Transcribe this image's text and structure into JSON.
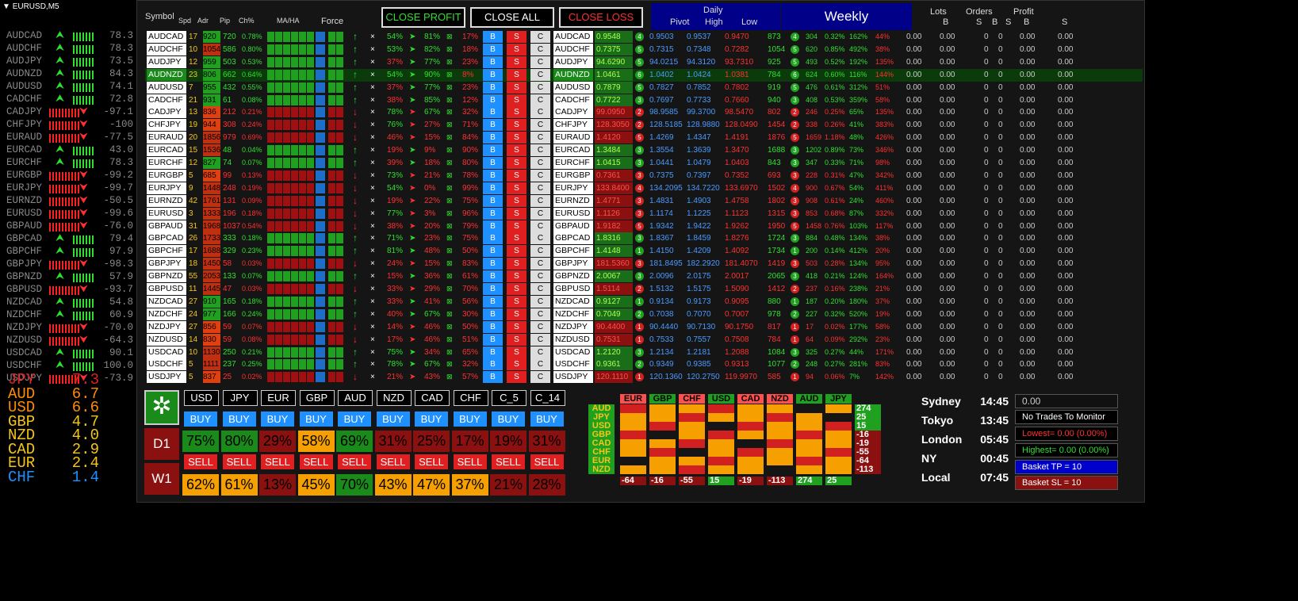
{
  "chart_title": "EURUSD,M5",
  "left_list": [
    {
      "pair": "AUDCAD",
      "dir": "up",
      "value": "78.3"
    },
    {
      "pair": "AUDCHF",
      "dir": "up",
      "value": "78.3"
    },
    {
      "pair": "AUDJPY",
      "dir": "up",
      "value": "73.5"
    },
    {
      "pair": "AUDNZD",
      "dir": "up",
      "value": "84.3"
    },
    {
      "pair": "AUDUSD",
      "dir": "up",
      "value": "74.1"
    },
    {
      "pair": "CADCHF",
      "dir": "up",
      "value": "72.8"
    },
    {
      "pair": "CADJPY",
      "dir": "down",
      "value": "-97.1"
    },
    {
      "pair": "CHFJPY",
      "dir": "down",
      "value": "-100"
    },
    {
      "pair": "EURAUD",
      "dir": "down",
      "value": "-77.5"
    },
    {
      "pair": "EURCAD",
      "dir": "up",
      "value": "43.0"
    },
    {
      "pair": "EURCHF",
      "dir": "up",
      "value": "78.3"
    },
    {
      "pair": "EURGBP",
      "dir": "down",
      "value": "-99.2"
    },
    {
      "pair": "EURJPY",
      "dir": "down",
      "value": "-99.7"
    },
    {
      "pair": "EURNZD",
      "dir": "down",
      "value": "-50.5"
    },
    {
      "pair": "EURUSD",
      "dir": "down",
      "value": "-99.6"
    },
    {
      "pair": "GBPAUD",
      "dir": "down",
      "value": "-76.0"
    },
    {
      "pair": "GBPCAD",
      "dir": "up",
      "value": "79.4"
    },
    {
      "pair": "GBPCHF",
      "dir": "up",
      "value": "97.9"
    },
    {
      "pair": "GBPJPY",
      "dir": "down",
      "value": "-98.3"
    },
    {
      "pair": "GBPNZD",
      "dir": "up",
      "value": "57.9"
    },
    {
      "pair": "GBPUSD",
      "dir": "down",
      "value": "-93.7"
    },
    {
      "pair": "NZDCAD",
      "dir": "up",
      "value": "54.8"
    },
    {
      "pair": "NZDCHF",
      "dir": "up",
      "value": "60.9"
    },
    {
      "pair": "NZDJPY",
      "dir": "down",
      "value": "-70.0"
    },
    {
      "pair": "NZDUSD",
      "dir": "down",
      "value": "-64.3"
    },
    {
      "pair": "USDCAD",
      "dir": "up",
      "value": "90.1"
    },
    {
      "pair": "USDCHF",
      "dir": "up",
      "value": "100.0"
    },
    {
      "pair": "USDJPY",
      "dir": "down",
      "value": "-73.9"
    }
  ],
  "strength": [
    {
      "ccy": "JPY",
      "val": "7.3",
      "color": "#e02020"
    },
    {
      "ccy": "AUD",
      "val": "6.7",
      "color": "#ff8c00"
    },
    {
      "ccy": "USD",
      "val": "6.6",
      "color": "#ff8c00"
    },
    {
      "ccy": "GBP",
      "val": "4.7",
      "color": "#f5c518"
    },
    {
      "ccy": "NZD",
      "val": "4.0",
      "color": "#f5c518"
    },
    {
      "ccy": "CAD",
      "val": "2.9",
      "color": "#f5c518"
    },
    {
      "ccy": "EUR",
      "val": "2.4",
      "color": "#f5c518"
    },
    {
      "ccy": "CHF",
      "val": "1.4",
      "color": "#1e90ff"
    }
  ],
  "headers": {
    "symbol": "Symbol",
    "spd": "Spd",
    "adr": "Adr",
    "pip": "Pip",
    "ch": "Ch%",
    "maha": "MA/HA",
    "force": "Force",
    "daily": "Daily",
    "pivot": "Pivot",
    "high": "High",
    "low": "Low",
    "weekly": "Weekly",
    "lots": "Lots",
    "orders": "Orders",
    "profit": "Profit",
    "b": "B",
    "s": "S"
  },
  "buttons": {
    "close_profit": "CLOSE PROFIT",
    "close_all": "CLOSE ALL",
    "close_loss": "CLOSE LOSS",
    "b": "B",
    "s": "S",
    "c": "C"
  },
  "rows": [
    {
      "sym": "AUDCAD",
      "spd": "17",
      "adr": "920",
      "pip": "720",
      "ch": "0.78%",
      "p1": "54%",
      "p2": "81%",
      "p3": "17%",
      "price": "0.9548",
      "rank": "4",
      "pivot": "0.9503",
      "high": "0.9537",
      "low": "0.9470",
      "w1": "873",
      "w2": "304",
      "w3": "0.32%",
      "w4": "162%",
      "w5": "44%"
    },
    {
      "sym": "AUDCHF",
      "spd": "10",
      "adr": "1054",
      "pip": "586",
      "ch": "0.80%",
      "p1": "53%",
      "p2": "82%",
      "p3": "18%",
      "price": "0.7375",
      "rank": "5",
      "pivot": "0.7315",
      "high": "0.7348",
      "low": "0.7282",
      "w1": "1054",
      "w2": "620",
      "w3": "0.85%",
      "w4": "492%",
      "w5": "38%"
    },
    {
      "sym": "AUDJPY",
      "spd": "12",
      "adr": "959",
      "pip": "503",
      "ch": "0.53%",
      "p1": "37%",
      "p2": "77%",
      "p3": "23%",
      "price": "94.6290",
      "rank": "5",
      "pivot": "94.0215",
      "high": "94.3120",
      "low": "93.7310",
      "w1": "925",
      "w2": "493",
      "w3": "0.52%",
      "w4": "192%",
      "w5": "135%"
    },
    {
      "sym": "AUDNZD",
      "spd": "23",
      "adr": "806",
      "pip": "662",
      "ch": "0.64%",
      "p1": "54%",
      "p2": "90%",
      "p3": "8%",
      "price": "1.0461",
      "rank": "6",
      "pivot": "1.0402",
      "high": "1.0424",
      "low": "1.0381",
      "w1": "784",
      "w2": "624",
      "w3": "0.60%",
      "w4": "116%",
      "w5": "144%"
    },
    {
      "sym": "AUDUSD",
      "spd": "7",
      "adr": "955",
      "pip": "432",
      "ch": "0.55%",
      "p1": "37%",
      "p2": "77%",
      "p3": "23%",
      "price": "0.7879",
      "rank": "5",
      "pivot": "0.7827",
      "high": "0.7852",
      "low": "0.7802",
      "w1": "919",
      "w2": "476",
      "w3": "0.61%",
      "w4": "312%",
      "w5": "51%"
    },
    {
      "sym": "CADCHF",
      "spd": "21",
      "adr": "931",
      "pip": "61",
      "ch": "0.08%",
      "p1": "38%",
      "p2": "85%",
      "p3": "12%",
      "price": "0.7722",
      "rank": "3",
      "pivot": "0.7697",
      "high": "0.7733",
      "low": "0.7660",
      "w1": "940",
      "w2": "408",
      "w3": "0.53%",
      "w4": "359%",
      "w5": "58%"
    },
    {
      "sym": "CADJPY",
      "spd": "13",
      "adr": "836",
      "pip": "212",
      "ch": "0.21%",
      "p1": "78%",
      "p2": "67%",
      "p3": "32%",
      "price": "99.0950",
      "rank": "2",
      "pivot": "98.9585",
      "high": "99.3700",
      "low": "98.5470",
      "w1": "802",
      "w2": "246",
      "w3": "0.25%",
      "w4": "65%",
      "w5": "135%"
    },
    {
      "sym": "CHFJPY",
      "spd": "19",
      "adr": "944",
      "pip": "308",
      "ch": "0.24%",
      "p1": "76%",
      "p2": "27%",
      "p3": "71%",
      "price": "128.3050",
      "rank": "2",
      "pivot": "128.5185",
      "high": "128.9880",
      "low": "128.0490",
      "w1": "1454",
      "w2": "338",
      "w3": "0.26%",
      "w4": "41%",
      "w5": "383%"
    },
    {
      "sym": "EURAUD",
      "spd": "20",
      "adr": "1856",
      "pip": "979",
      "ch": "0.69%",
      "p1": "46%",
      "p2": "15%",
      "p3": "84%",
      "price": "1.4120",
      "rank": "5",
      "pivot": "1.4269",
      "high": "1.4347",
      "low": "1.4191",
      "w1": "1876",
      "w2": "1659",
      "w3": "1.18%",
      "w4": "48%",
      "w5": "426%"
    },
    {
      "sym": "EURCAD",
      "spd": "15",
      "adr": "1536",
      "pip": "48",
      "ch": "0.04%",
      "p1": "19%",
      "p2": "9%",
      "p3": "90%",
      "price": "1.3484",
      "rank": "3",
      "pivot": "1.3554",
      "high": "1.3639",
      "low": "1.3470",
      "w1": "1688",
      "w2": "1202",
      "w3": "0.89%",
      "w4": "73%",
      "w5": "346%"
    },
    {
      "sym": "EURCHF",
      "spd": "12",
      "adr": "827",
      "pip": "74",
      "ch": "0.07%",
      "p1": "39%",
      "p2": "18%",
      "p3": "80%",
      "price": "1.0415",
      "rank": "3",
      "pivot": "1.0441",
      "high": "1.0479",
      "low": "1.0403",
      "w1": "843",
      "w2": "347",
      "w3": "0.33%",
      "w4": "71%",
      "w5": "98%"
    },
    {
      "sym": "EURGBP",
      "spd": "5",
      "adr": "685",
      "pip": "99",
      "ch": "0.13%",
      "p1": "73%",
      "p2": "21%",
      "p3": "78%",
      "price": "0.7361",
      "rank": "3",
      "pivot": "0.7375",
      "high": "0.7397",
      "low": "0.7352",
      "w1": "693",
      "w2": "228",
      "w3": "0.31%",
      "w4": "47%",
      "w5": "342%"
    },
    {
      "sym": "EURJPY",
      "spd": "9",
      "adr": "1448",
      "pip": "248",
      "ch": "0.19%",
      "p1": "54%",
      "p2": "0%",
      "p3": "99%",
      "price": "133.8400",
      "rank": "4",
      "pivot": "134.2095",
      "high": "134.7220",
      "low": "133.6970",
      "w1": "1502",
      "w2": "900",
      "w3": "0.67%",
      "w4": "54%",
      "w5": "411%"
    },
    {
      "sym": "EURNZD",
      "spd": "42",
      "adr": "1761",
      "pip": "131",
      "ch": "0.09%",
      "p1": "19%",
      "p2": "22%",
      "p3": "75%",
      "price": "1.4771",
      "rank": "3",
      "pivot": "1.4831",
      "high": "1.4903",
      "low": "1.4758",
      "w1": "1802",
      "w2": "908",
      "w3": "0.61%",
      "w4": "24%",
      "w5": "460%"
    },
    {
      "sym": "EURUSD",
      "spd": "3",
      "adr": "1333",
      "pip": "196",
      "ch": "0.18%",
      "p1": "77%",
      "p2": "3%",
      "p3": "96%",
      "price": "1.1126",
      "rank": "3",
      "pivot": "1.1174",
      "high": "1.1225",
      "low": "1.1123",
      "w1": "1315",
      "w2": "853",
      "w3": "0.68%",
      "w4": "87%",
      "w5": "332%"
    },
    {
      "sym": "GBPAUD",
      "spd": "31",
      "adr": "1968",
      "pip": "1037",
      "ch": "0.54%",
      "p1": "38%",
      "p2": "20%",
      "p3": "79%",
      "price": "1.9182",
      "rank": "5",
      "pivot": "1.9342",
      "high": "1.9422",
      "low": "1.9262",
      "w1": "1950",
      "w2": "1458",
      "w3": "0.76%",
      "w4": "103%",
      "w5": "117%"
    },
    {
      "sym": "GBPCAD",
      "spd": "26",
      "adr": "1733",
      "pip": "333",
      "ch": "0.18%",
      "p1": "71%",
      "p2": "23%",
      "p3": "75%",
      "price": "1.8316",
      "rank": "3",
      "pivot": "1.8367",
      "high": "1.8459",
      "low": "1.8276",
      "w1": "1724",
      "w2": "884",
      "w3": "0.48%",
      "w4": "134%",
      "w5": "38%"
    },
    {
      "sym": "GBPCHF",
      "spd": "17",
      "adr": "1688",
      "pip": "329",
      "ch": "0.23%",
      "p1": "81%",
      "p2": "48%",
      "p3": "50%",
      "price": "1.4148",
      "rank": "1",
      "pivot": "1.4150",
      "high": "1.4209",
      "low": "1.4092",
      "w1": "1734",
      "w2": "200",
      "w3": "0.14%",
      "w4": "412%",
      "w5": "20%"
    },
    {
      "sym": "GBPJPY",
      "spd": "18",
      "adr": "1450",
      "pip": "58",
      "ch": "0.03%",
      "p1": "24%",
      "p2": "15%",
      "p3": "83%",
      "price": "181.5360",
      "rank": "3",
      "pivot": "181.8495",
      "high": "182.2920",
      "low": "181.4070",
      "w1": "1419",
      "w2": "503",
      "w3": "0.28%",
      "w4": "134%",
      "w5": "95%"
    },
    {
      "sym": "GBPNZD",
      "spd": "55",
      "adr": "2053",
      "pip": "133",
      "ch": "0.07%",
      "p1": "15%",
      "p2": "36%",
      "p3": "61%",
      "price": "2.0067",
      "rank": "3",
      "pivot": "2.0096",
      "high": "2.0175",
      "low": "2.0017",
      "w1": "2065",
      "w2": "418",
      "w3": "0.21%",
      "w4": "124%",
      "w5": "164%"
    },
    {
      "sym": "GBPUSD",
      "spd": "11",
      "adr": "1445",
      "pip": "47",
      "ch": "0.03%",
      "p1": "33%",
      "p2": "29%",
      "p3": "70%",
      "price": "1.5114",
      "rank": "2",
      "pivot": "1.5132",
      "high": "1.5175",
      "low": "1.5090",
      "w1": "1412",
      "w2": "237",
      "w3": "0.16%",
      "w4": "238%",
      "w5": "21%"
    },
    {
      "sym": "NZDCAD",
      "spd": "27",
      "adr": "910",
      "pip": "165",
      "ch": "0.18%",
      "p1": "33%",
      "p2": "41%",
      "p3": "56%",
      "price": "0.9127",
      "rank": "1",
      "pivot": "0.9134",
      "high": "0.9173",
      "low": "0.9095",
      "w1": "880",
      "w2": "187",
      "w3": "0.20%",
      "w4": "180%",
      "w5": "37%"
    },
    {
      "sym": "NZDCHF",
      "spd": "24",
      "adr": "977",
      "pip": "166",
      "ch": "0.24%",
      "p1": "40%",
      "p2": "67%",
      "p3": "30%",
      "price": "0.7049",
      "rank": "2",
      "pivot": "0.7038",
      "high": "0.7070",
      "low": "0.7007",
      "w1": "978",
      "w2": "227",
      "w3": "0.32%",
      "w4": "520%",
      "w5": "19%"
    },
    {
      "sym": "NZDJPY",
      "spd": "27",
      "adr": "856",
      "pip": "59",
      "ch": "0.07%",
      "p1": "14%",
      "p2": "46%",
      "p3": "50%",
      "price": "90.4400",
      "rank": "1",
      "pivot": "90.4440",
      "high": "90.7130",
      "low": "90.1750",
      "w1": "817",
      "w2": "17",
      "w3": "0.02%",
      "w4": "177%",
      "w5": "58%"
    },
    {
      "sym": "NZDUSD",
      "spd": "14",
      "adr": "830",
      "pip": "59",
      "ch": "0.08%",
      "p1": "17%",
      "p2": "46%",
      "p3": "51%",
      "price": "0.7531",
      "rank": "1",
      "pivot": "0.7533",
      "high": "0.7557",
      "low": "0.7508",
      "w1": "784",
      "w2": "64",
      "w3": "0.09%",
      "w4": "292%",
      "w5": "23%"
    },
    {
      "sym": "USDCAD",
      "spd": "10",
      "adr": "1130",
      "pip": "250",
      "ch": "0.21%",
      "p1": "75%",
      "p2": "34%",
      "p3": "65%",
      "price": "1.2120",
      "rank": "3",
      "pivot": "1.2134",
      "high": "1.2181",
      "low": "1.2088",
      "w1": "1084",
      "w2": "325",
      "w3": "0.27%",
      "w4": "44%",
      "w5": "171%"
    },
    {
      "sym": "USDCHF",
      "spd": "5",
      "adr": "1111",
      "pip": "237",
      "ch": "0.25%",
      "p1": "78%",
      "p2": "67%",
      "p3": "32%",
      "price": "0.9361",
      "rank": "2",
      "pivot": "0.9349",
      "high": "0.9385",
      "low": "0.9313",
      "w1": "1077",
      "w2": "248",
      "w3": "0.27%",
      "w4": "281%",
      "w5": "83%"
    },
    {
      "sym": "USDJPY",
      "spd": "5",
      "adr": "837",
      "pip": "25",
      "ch": "0.02%",
      "p1": "21%",
      "p2": "43%",
      "p3": "57%",
      "price": "120.1110",
      "rank": "1",
      "pivot": "120.1360",
      "high": "120.2750",
      "low": "119.9970",
      "w1": "585",
      "w2": "94",
      "w3": "0.06%",
      "w4": "7%",
      "w5": "142%"
    }
  ],
  "zero": "0.00",
  "zero_i": "0",
  "bottom": {
    "currencies": [
      "USD",
      "JPY",
      "EUR",
      "GBP",
      "AUD",
      "NZD",
      "CAD",
      "CHF",
      "C_5",
      "C_14"
    ],
    "buy": "BUY",
    "sell": "SELL",
    "d1": "D1",
    "w1": "W1",
    "d1_pct": [
      "75%",
      "80%",
      "29%",
      "58%",
      "69%",
      "31%",
      "25%",
      "17%",
      "19%",
      "31%"
    ],
    "w1_pct": [
      "62%",
      "61%",
      "13%",
      "45%",
      "70%",
      "43%",
      "47%",
      "37%",
      "21%",
      "28%"
    ],
    "d1_colors": [
      "#1a8a1a",
      "#1a8a1a",
      "#8b1010",
      "#f5a000",
      "#1a8a1a",
      "#8b1010",
      "#8b1010",
      "#8b1010",
      "#8b1010",
      "#8b1010"
    ],
    "w1_colors": [
      "#f5a000",
      "#f5a000",
      "#8b1010",
      "#f5a000",
      "#1a8a1a",
      "#f5a000",
      "#f5a000",
      "#f5a000",
      "#8b1010",
      "#8b1010"
    ]
  },
  "matrix": {
    "cols": [
      "EUR",
      "GBP",
      "CHF",
      "USD",
      "CAD",
      "NZD",
      "AUD",
      "JPY"
    ],
    "rows": [
      "AUD",
      "JPY",
      "USD",
      "GBP",
      "CAD",
      "CHF",
      "EUR",
      "NZD"
    ],
    "sums": [
      "274",
      "25",
      "15",
      "-16",
      "-19",
      "-55",
      "-64",
      "-113"
    ],
    "totals": [
      "-64",
      "-16",
      "-55",
      "15",
      "-19",
      "-113",
      "274",
      "25"
    ]
  },
  "sessions": [
    {
      "name": "Sydney",
      "time": "14:45"
    },
    {
      "name": "Tokyo",
      "time": "13:45"
    },
    {
      "name": "London",
      "time": "05:45"
    },
    {
      "name": "NY",
      "time": "00:45"
    },
    {
      "name": "Local",
      "time": "07:45"
    }
  ],
  "info": {
    "profit": "0.00",
    "no_trades": "No Trades To Monitor",
    "lowest": "Lowest= 0.00 (0.00%)",
    "highest": "Highest= 0.00 (0.00%)",
    "tp": "Basket TP = 10",
    "sl": "Basket SL = 10"
  }
}
